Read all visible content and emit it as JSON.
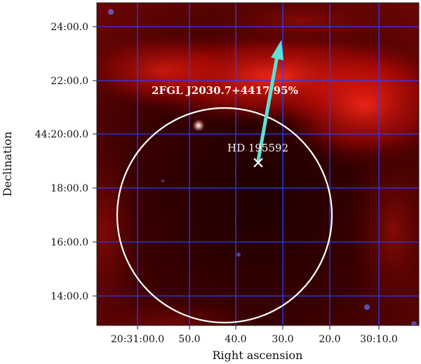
{
  "image": {
    "xlabel": "Right ascension",
    "ylabel": "Declination",
    "ra_ticks": [
      "20:31:00.0",
      "50.0",
      "40.0",
      "30.0",
      "20.0",
      "30:10.0"
    ],
    "dec_ticks": [
      "24:00.0",
      "22:00.0",
      "44:20:00.0",
      "18:00.0",
      "16:00.0",
      "14:00.0"
    ],
    "circle_label": "2FGL J2030.7+4417 95%",
    "source_label": "HD 195592",
    "colors": {
      "grid": "#2a3cff",
      "circle": "#ffffff",
      "arrow": "#5fe0d4",
      "marker": "#ffffff"
    }
  }
}
